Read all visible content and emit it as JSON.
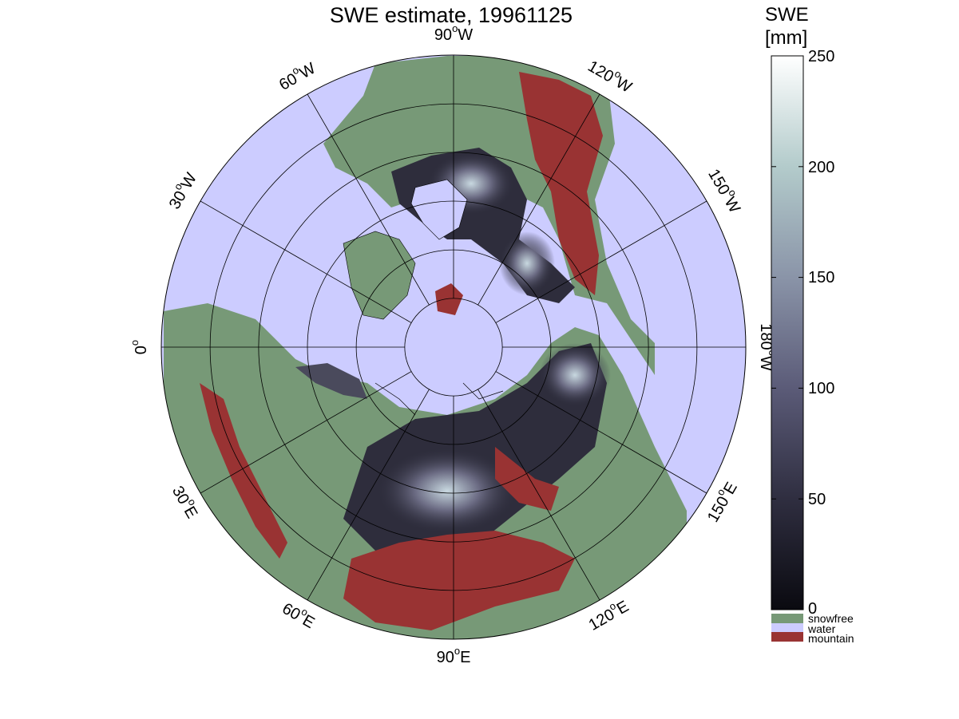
{
  "title": "SWE estimate, 19961125",
  "colorbar": {
    "title_line1": "SWE",
    "title_line2": "[mm]",
    "ticks": [
      "250",
      "200",
      "150",
      "100",
      "50",
      "0"
    ],
    "tick_values": [
      250,
      200,
      150,
      100,
      50,
      0
    ],
    "range": [
      0,
      250
    ],
    "gradient_colors": [
      "#0a0a10",
      "#2f2e40",
      "#5b5b78",
      "#8a94a8",
      "#b3cbcb",
      "#ffffff"
    ],
    "classes": [
      {
        "label": "snowfree",
        "color": "#779977"
      },
      {
        "label": "water",
        "color": "#ccccff"
      },
      {
        "label": "mountain",
        "color": "#993333"
      }
    ]
  },
  "map": {
    "projection": "north-polar stereographic",
    "ocean_color": "#ccccff",
    "land_snowfree_color": "#779977",
    "mountain_color": "#993333",
    "snow_dark_color": "#2a2a38",
    "snow_light_color": "#b8c8d0",
    "longitude_labels": [
      {
        "deg": "90",
        "hemi": "W"
      },
      {
        "deg": "120",
        "hemi": "W"
      },
      {
        "deg": "150",
        "hemi": "W"
      },
      {
        "deg": "180",
        "hemi": "W"
      },
      {
        "deg": "150",
        "hemi": "E"
      },
      {
        "deg": "120",
        "hemi": "E"
      },
      {
        "deg": "90",
        "hemi": "E"
      },
      {
        "deg": "60",
        "hemi": "E"
      },
      {
        "deg": "30",
        "hemi": "E"
      },
      {
        "deg": "0",
        "hemi": ""
      },
      {
        "deg": "30",
        "hemi": "W"
      },
      {
        "deg": "60",
        "hemi": "W"
      }
    ]
  }
}
